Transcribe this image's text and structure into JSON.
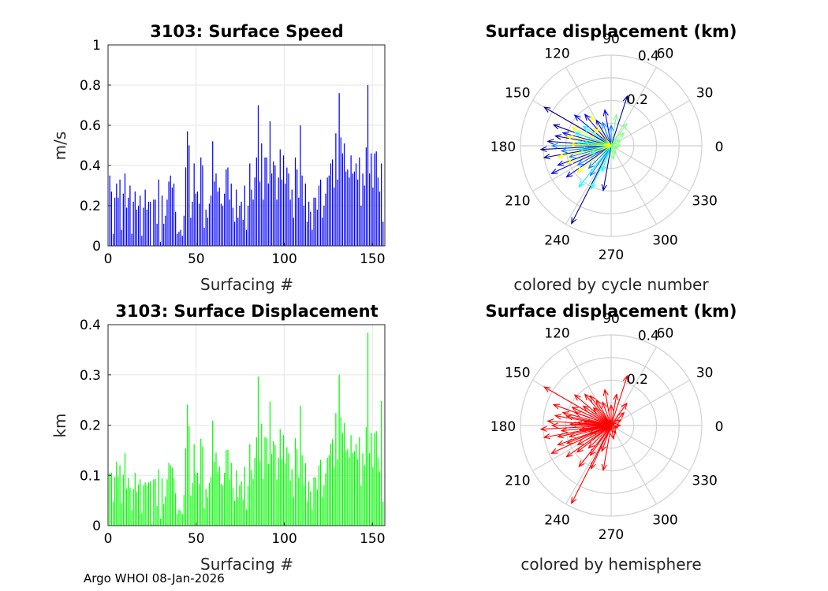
{
  "footer": "Argo WHOI 08-Jan-2026",
  "chart_data": [
    {
      "type": "bar",
      "title": "3103: Surface Speed",
      "xlabel": "Surfacing #",
      "ylabel": "m/s",
      "xlim": [
        0,
        157
      ],
      "ylim": [
        0,
        1
      ],
      "xticks": [
        "0",
        "50",
        "100",
        "150"
      ],
      "yticks": [
        "0",
        "0.2",
        "0.4",
        "0.6",
        "0.8",
        "1"
      ],
      "color": "#0000ff",
      "values": [
        0.35,
        0.27,
        0.06,
        0.24,
        0.31,
        0.24,
        0.33,
        0.08,
        0.26,
        0.36,
        0.19,
        0.24,
        0.3,
        0.06,
        0.22,
        0.27,
        0.18,
        0.2,
        0.25,
        0.05,
        0.19,
        0.28,
        0.18,
        0.22,
        0.22,
        0.0,
        0.23,
        0.23,
        0.11,
        0.33,
        0.02,
        0.25,
        0.11,
        0.15,
        0.23,
        0.32,
        0.35,
        0.29,
        0.31,
        0.17,
        0.06,
        0.07,
        0.08,
        0.05,
        0.15,
        0.39,
        0.57,
        0.5,
        0.14,
        0.22,
        0.41,
        0.26,
        0.27,
        0.21,
        0.44,
        0.4,
        0.09,
        0.18,
        0.14,
        0.21,
        0.25,
        0.52,
        0.32,
        0.36,
        0.27,
        0.29,
        0.21,
        0.2,
        0.26,
        0.38,
        0.39,
        0.23,
        0.31,
        0.19,
        0.12,
        0.28,
        0.14,
        0.2,
        0.22,
        0.13,
        0.3,
        0.08,
        0.2,
        0.41,
        0.28,
        0.23,
        0.34,
        0.44,
        0.7,
        0.32,
        0.51,
        0.23,
        0.44,
        0.44,
        0.31,
        0.62,
        0.36,
        0.42,
        0.4,
        0.23,
        0.34,
        0.48,
        0.33,
        0.45,
        0.31,
        0.39,
        0.36,
        0.23,
        0.28,
        0.14,
        0.44,
        0.38,
        0.24,
        0.6,
        0.35,
        0.2,
        0.31,
        0.12,
        0.22,
        0.17,
        0.08,
        0.24,
        0.24,
        0.18,
        0.3,
        0.33,
        0.14,
        0.2,
        0.26,
        0.34,
        0.35,
        0.41,
        0.43,
        0.29,
        0.56,
        0.33,
        0.76,
        0.54,
        0.46,
        0.51,
        0.37,
        0.38,
        0.34,
        0.45,
        0.36,
        0.37,
        0.41,
        0.33,
        0.44,
        0.2,
        0.36,
        0.3,
        0.49,
        0.8,
        0.36,
        0.46,
        0.29,
        0.46,
        0.47,
        0.34,
        0.27,
        0.41,
        0.12
      ]
    },
    {
      "type": "bar",
      "title": "3103: Surface Displacement",
      "xlabel": "Surfacing #",
      "ylabel": "km",
      "xlim": [
        0,
        157
      ],
      "ylim": [
        0,
        0.4
      ],
      "xticks": [
        "0",
        "50",
        "100",
        "150"
      ],
      "yticks": [
        "0",
        "0.1",
        "0.2",
        "0.3",
        "0.4"
      ],
      "color": "#00ff00",
      "values": [
        0.104,
        0.105,
        0.048,
        0.097,
        0.127,
        0.097,
        0.12,
        0.045,
        0.101,
        0.144,
        0.074,
        0.095,
        0.075,
        0.031,
        0.073,
        0.105,
        0.068,
        0.082,
        0.092,
        0.025,
        0.08,
        0.086,
        0.08,
        0.086,
        0.088,
        0.004,
        0.092,
        0.093,
        0.039,
        0.112,
        0.014,
        0.094,
        0.043,
        0.058,
        0.092,
        0.125,
        0.12,
        0.115,
        0.094,
        0.064,
        0.024,
        0.032,
        0.03,
        0.023,
        0.061,
        0.154,
        0.241,
        0.198,
        0.06,
        0.085,
        0.162,
        0.104,
        0.105,
        0.083,
        0.173,
        0.158,
        0.035,
        0.073,
        0.056,
        0.085,
        0.097,
        0.209,
        0.127,
        0.145,
        0.107,
        0.118,
        0.083,
        0.08,
        0.105,
        0.15,
        0.151,
        0.092,
        0.125,
        0.075,
        0.049,
        0.11,
        0.056,
        0.08,
        0.088,
        0.052,
        0.117,
        0.032,
        0.079,
        0.162,
        0.111,
        0.093,
        0.135,
        0.176,
        0.297,
        0.128,
        0.203,
        0.093,
        0.176,
        0.174,
        0.123,
        0.247,
        0.143,
        0.168,
        0.16,
        0.092,
        0.135,
        0.192,
        0.132,
        0.18,
        0.124,
        0.156,
        0.144,
        0.09,
        0.112,
        0.056,
        0.174,
        0.152,
        0.096,
        0.239,
        0.14,
        0.08,
        0.124,
        0.048,
        0.088,
        0.068,
        0.032,
        0.096,
        0.096,
        0.072,
        0.12,
        0.131,
        0.056,
        0.08,
        0.104,
        0.135,
        0.14,
        0.163,
        0.172,
        0.116,
        0.224,
        0.132,
        0.3,
        0.216,
        0.184,
        0.204,
        0.148,
        0.152,
        0.136,
        0.18,
        0.144,
        0.148,
        0.163,
        0.132,
        0.176,
        0.08,
        0.144,
        0.12,
        0.196,
        0.384,
        0.144,
        0.184,
        0.116,
        0.184,
        0.188,
        0.136,
        0.108,
        0.248,
        0.047
      ]
    },
    {
      "type": "polar",
      "title": "Surface displacement (km)",
      "caption": "colored by cycle number",
      "rmax": 0.4,
      "rticks": [
        "0.2",
        "0.4"
      ],
      "angle_ticks": [
        "0",
        "30",
        "60",
        "90",
        "120",
        "150",
        "180",
        "210",
        "240",
        "270",
        "300",
        "330"
      ],
      "colormap": [
        "#00008f",
        "#0000ff",
        "#0080ff",
        "#00ffff",
        "#80ff80",
        "#ffff00"
      ],
      "arrows": [
        {
          "angle": 150,
          "r": 0.34
        },
        {
          "angle": 243,
          "r": 0.385
        },
        {
          "angle": 72,
          "r": 0.23
        },
        {
          "angle": 260,
          "r": 0.2
        },
        {
          "angle": 160,
          "r": 0.27
        },
        {
          "angle": 176,
          "r": 0.28
        },
        {
          "angle": 183,
          "r": 0.31
        },
        {
          "angle": 190,
          "r": 0.3
        },
        {
          "angle": 170,
          "r": 0.25
        },
        {
          "angle": 200,
          "r": 0.25
        },
        {
          "angle": 205,
          "r": 0.29
        },
        {
          "angle": 215,
          "r": 0.24
        },
        {
          "angle": 165,
          "r": 0.22
        },
        {
          "angle": 140,
          "r": 0.21
        },
        {
          "angle": 130,
          "r": 0.18
        },
        {
          "angle": 120,
          "r": 0.13
        },
        {
          "angle": 100,
          "r": 0.16
        },
        {
          "angle": 110,
          "r": 0.11
        },
        {
          "angle": 90,
          "r": 0.09
        },
        {
          "angle": 180,
          "r": 0.26
        },
        {
          "angle": 186,
          "r": 0.22
        },
        {
          "angle": 195,
          "r": 0.19
        },
        {
          "angle": 210,
          "r": 0.17
        },
        {
          "angle": 225,
          "r": 0.14
        },
        {
          "angle": 235,
          "r": 0.16
        },
        {
          "angle": 245,
          "r": 0.21
        },
        {
          "angle": 250,
          "r": 0.12
        },
        {
          "angle": 232,
          "r": 0.23
        },
        {
          "angle": 175,
          "r": 0.15
        },
        {
          "angle": 160,
          "r": 0.17
        },
        {
          "angle": 145,
          "r": 0.15
        },
        {
          "angle": 172,
          "r": 0.12
        },
        {
          "angle": 188,
          "r": 0.14
        },
        {
          "angle": 200,
          "r": 0.1
        },
        {
          "angle": 55,
          "r": 0.12
        },
        {
          "angle": 45,
          "r": 0.08
        },
        {
          "angle": 30,
          "r": 0.05
        },
        {
          "angle": 0,
          "r": 0.04
        },
        {
          "angle": 340,
          "r": 0.03
        },
        {
          "angle": 300,
          "r": 0.04
        },
        {
          "angle": 280,
          "r": 0.06
        },
        {
          "angle": 80,
          "r": 0.14
        },
        {
          "angle": 135,
          "r": 0.11
        },
        {
          "angle": 155,
          "r": 0.19
        },
        {
          "angle": 168,
          "r": 0.2
        },
        {
          "angle": 178,
          "r": 0.18
        },
        {
          "angle": 192,
          "r": 0.24
        },
        {
          "angle": 202,
          "r": 0.21
        },
        {
          "angle": 218,
          "r": 0.19
        },
        {
          "angle": 125,
          "r": 0.16
        }
      ]
    },
    {
      "type": "polar",
      "title": "Surface displacement (km)",
      "caption": "colored by hemisphere",
      "rmax": 0.4,
      "rticks": [
        "0.2",
        "0.4"
      ],
      "angle_ticks": [
        "0",
        "30",
        "60",
        "90",
        "120",
        "150",
        "180",
        "210",
        "240",
        "270",
        "300",
        "330"
      ],
      "color": "#ff0000",
      "arrows_ref": "same displacement vectors as the cycle-number rose"
    }
  ]
}
